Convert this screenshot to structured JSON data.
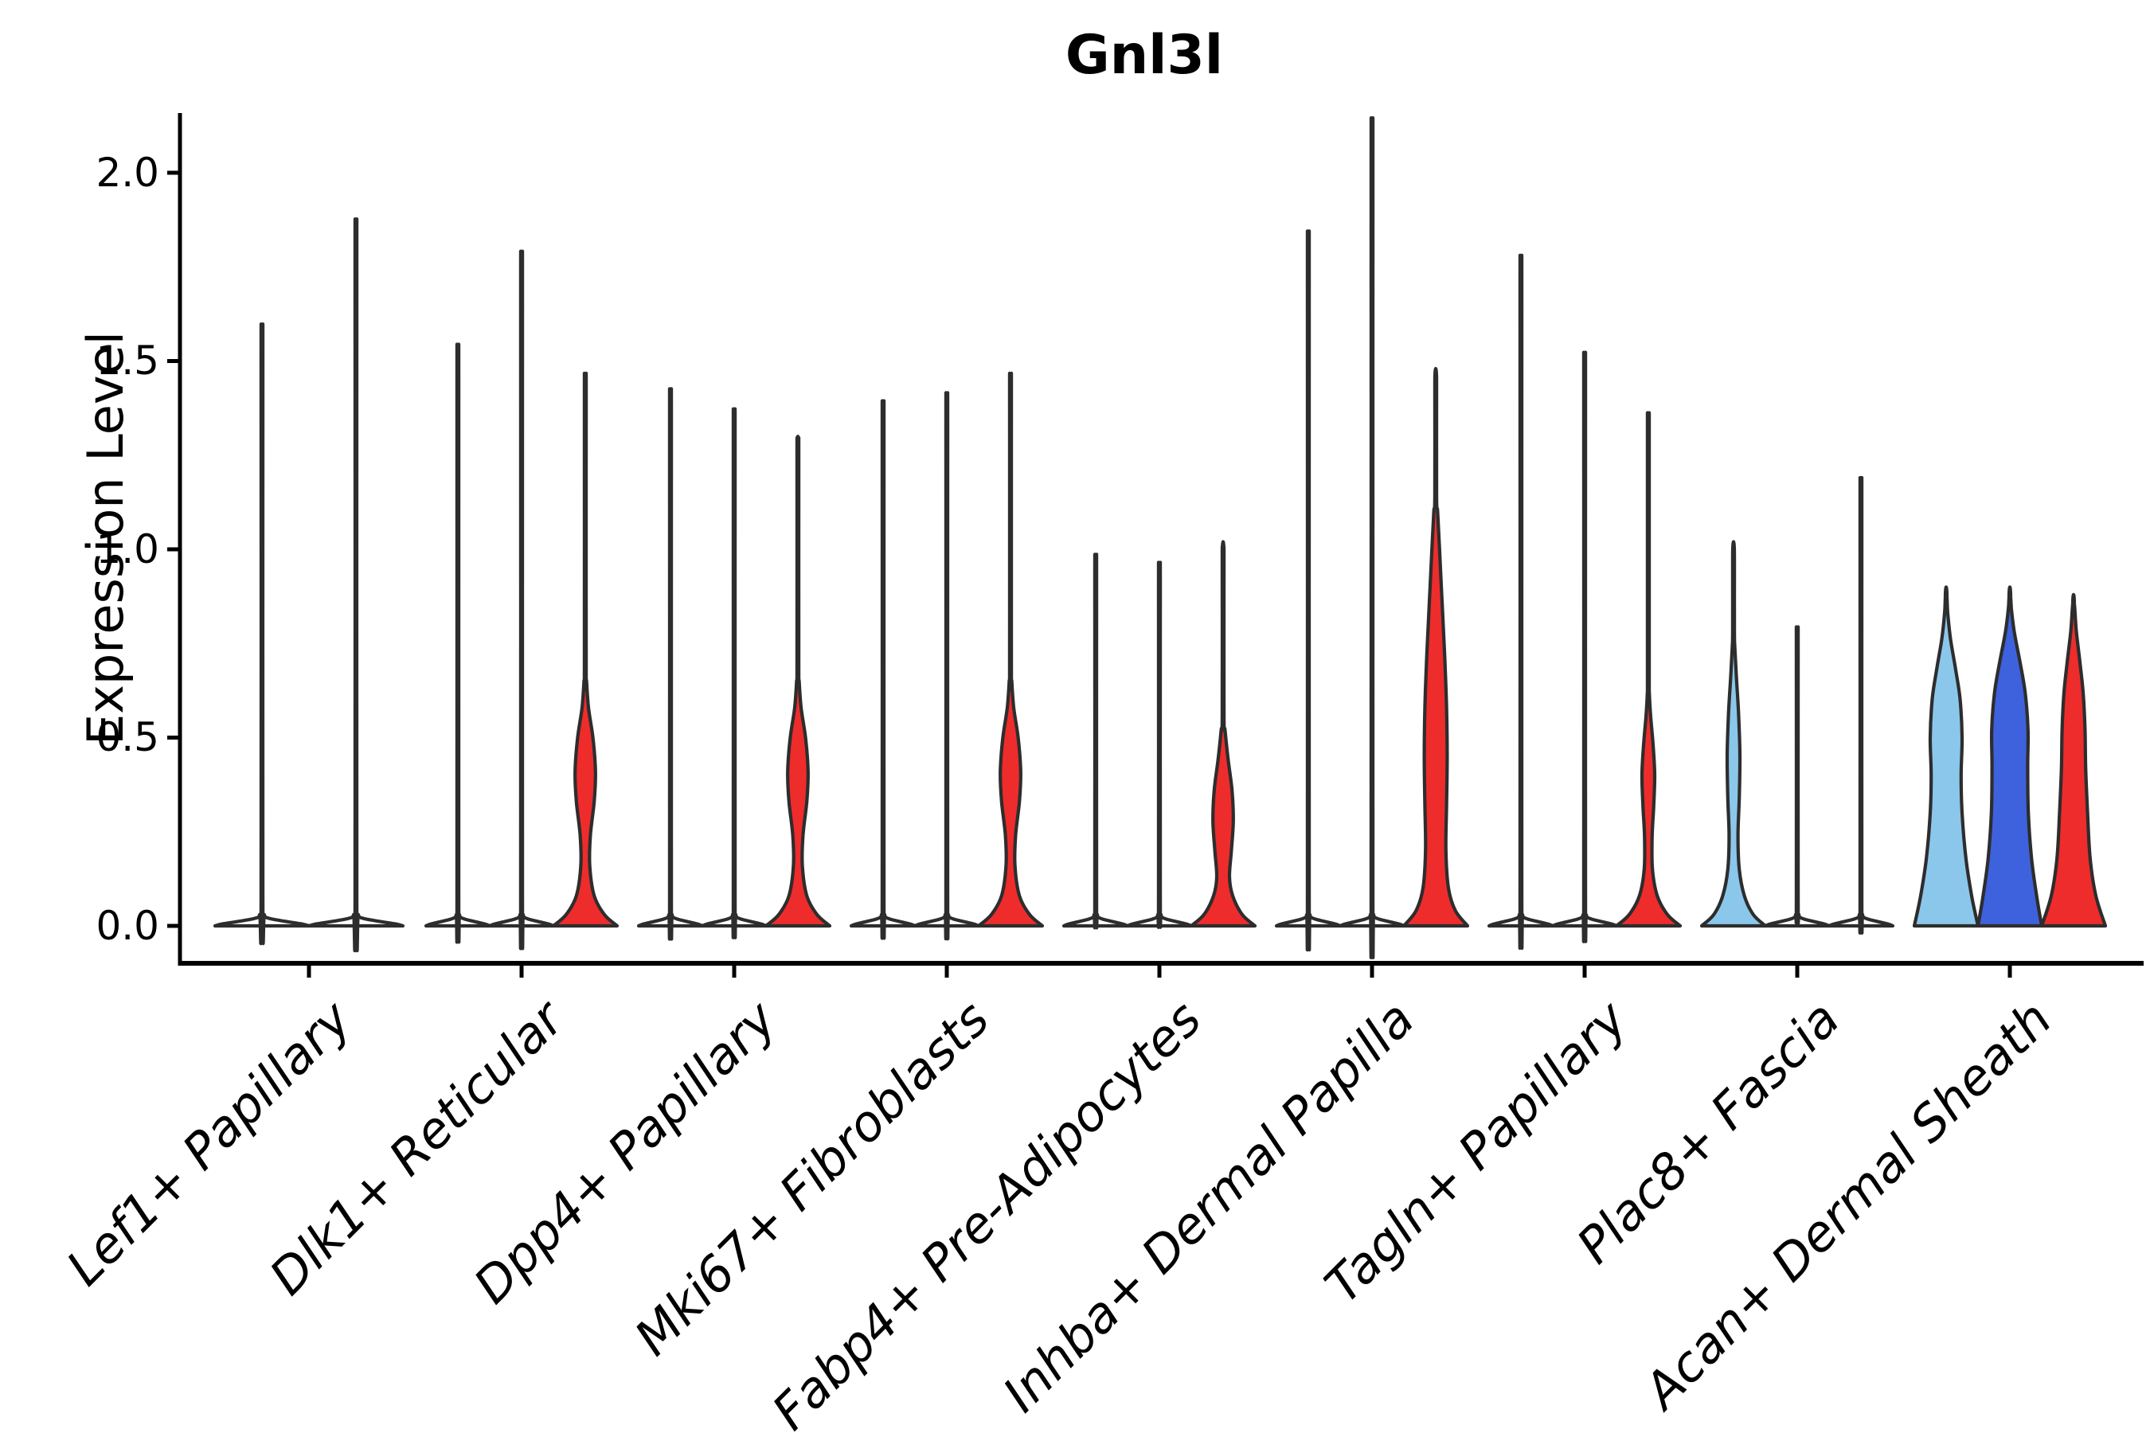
{
  "title": "Gnl3l",
  "axes": {
    "ylabel": "Expression Level",
    "yticks": [
      "0.0",
      "0.5",
      "1.0",
      "1.5",
      "2.0"
    ]
  },
  "colors": {
    "white": "#ffffff",
    "red": "#ee2c2c",
    "lightblue": "#8bc7eb",
    "darkblue": "#3e62dd",
    "outline": "#2d2d2d",
    "axis": "#000000"
  },
  "chart_data": {
    "type": "violin",
    "title": "Gnl3l",
    "ylabel": "Expression Level",
    "ylim": [
      -0.1,
      2.16
    ],
    "ytick_values": [
      0.0,
      0.5,
      1.0,
      1.5,
      2.0
    ],
    "grid": false,
    "legend": null,
    "categories": [
      "Lef1+ Papillary",
      "Dlk1+ Reticular",
      "Dpp4+ Papillary",
      "Mki67+ Fibroblasts",
      "Fabp4+ Pre-Adipocytes",
      "Inhba+ Dermal Papilla",
      "Tagln+ Papillary",
      "Plac8+ Fascia",
      "Acan+ Dermal Sheath"
    ],
    "profiles": {
      "flat": [
        [
          0,
          1
        ],
        [
          0.005,
          0.85
        ],
        [
          0.012,
          0.5
        ],
        [
          0.02,
          0.15
        ],
        [
          0.03,
          0.05
        ]
      ],
      "bulge_small": [
        [
          0,
          1
        ],
        [
          0.03,
          0.6
        ],
        [
          0.08,
          0.28
        ],
        [
          0.15,
          0.13
        ],
        [
          0.24,
          0.12
        ],
        [
          0.32,
          0.17
        ],
        [
          0.4,
          0.2
        ],
        [
          0.48,
          0.15
        ],
        [
          0.56,
          0.07
        ],
        [
          0.62,
          0.03
        ]
      ],
      "bulge_med": [
        [
          0,
          1
        ],
        [
          0.03,
          0.6
        ],
        [
          0.08,
          0.28
        ],
        [
          0.16,
          0.14
        ],
        [
          0.24,
          0.16
        ],
        [
          0.33,
          0.28
        ],
        [
          0.41,
          0.32
        ],
        [
          0.5,
          0.24
        ],
        [
          0.58,
          0.1
        ],
        [
          0.65,
          0.04
        ]
      ],
      "bulge_low": [
        [
          0,
          1
        ],
        [
          0.03,
          0.6
        ],
        [
          0.08,
          0.3
        ],
        [
          0.13,
          0.2
        ],
        [
          0.2,
          0.26
        ],
        [
          0.28,
          0.32
        ],
        [
          0.36,
          0.28
        ],
        [
          0.44,
          0.16
        ],
        [
          0.52,
          0.06
        ]
      ],
      "bulge_tall": [
        [
          0,
          1
        ],
        [
          0.04,
          0.62
        ],
        [
          0.1,
          0.4
        ],
        [
          0.2,
          0.32
        ],
        [
          0.32,
          0.34
        ],
        [
          0.45,
          0.36
        ],
        [
          0.58,
          0.34
        ],
        [
          0.72,
          0.28
        ],
        [
          0.86,
          0.2
        ],
        [
          1.0,
          0.12
        ],
        [
          1.1,
          0.06
        ]
      ],
      "teardrop_slim": [
        [
          0,
          1
        ],
        [
          0.03,
          0.62
        ],
        [
          0.08,
          0.34
        ],
        [
          0.15,
          0.18
        ],
        [
          0.24,
          0.14
        ],
        [
          0.34,
          0.18
        ],
        [
          0.45,
          0.2
        ],
        [
          0.56,
          0.16
        ],
        [
          0.66,
          0.09
        ],
        [
          0.74,
          0.04
        ]
      ],
      "wide_lightblue": [
        [
          0,
          1
        ],
        [
          0.08,
          0.8
        ],
        [
          0.18,
          0.62
        ],
        [
          0.3,
          0.5
        ],
        [
          0.4,
          0.47
        ],
        [
          0.5,
          0.5
        ],
        [
          0.6,
          0.44
        ],
        [
          0.68,
          0.3
        ],
        [
          0.76,
          0.14
        ],
        [
          0.83,
          0.05
        ]
      ],
      "wide_darkblue": [
        [
          0,
          1
        ],
        [
          0.08,
          0.84
        ],
        [
          0.18,
          0.68
        ],
        [
          0.3,
          0.58
        ],
        [
          0.42,
          0.56
        ],
        [
          0.52,
          0.57
        ],
        [
          0.62,
          0.48
        ],
        [
          0.7,
          0.32
        ],
        [
          0.78,
          0.14
        ],
        [
          0.84,
          0.05
        ]
      ],
      "wide_red": [
        [
          0,
          1
        ],
        [
          0.08,
          0.7
        ],
        [
          0.18,
          0.52
        ],
        [
          0.3,
          0.44
        ],
        [
          0.42,
          0.38
        ],
        [
          0.52,
          0.36
        ],
        [
          0.62,
          0.3
        ],
        [
          0.7,
          0.2
        ],
        [
          0.78,
          0.09
        ],
        [
          0.84,
          0.04
        ]
      ]
    },
    "groups": [
      {
        "category": "Lef1+ Papillary",
        "violins": [
          {
            "color": "white",
            "shape": "flat",
            "max": 1.54
          },
          {
            "color": "white",
            "shape": "flat",
            "max": 1.8
          }
        ]
      },
      {
        "category": "Dlk1+ Reticular",
        "violins": [
          {
            "color": "white",
            "shape": "flat",
            "max": 1.49
          },
          {
            "color": "white",
            "shape": "flat",
            "max": 1.72
          },
          {
            "color": "red",
            "shape": "bulge_med",
            "max": 1.46
          }
        ]
      },
      {
        "category": "Dpp4+ Papillary",
        "violins": [
          {
            "color": "white",
            "shape": "flat",
            "max": 1.38
          },
          {
            "color": "white",
            "shape": "flat",
            "max": 1.33
          },
          {
            "color": "red",
            "shape": "bulge_med",
            "max": 1.3
          }
        ]
      },
      {
        "category": "Mki67+ Fibroblasts",
        "violins": [
          {
            "color": "white",
            "shape": "flat",
            "max": 1.35
          },
          {
            "color": "white",
            "shape": "flat",
            "max": 1.37
          },
          {
            "color": "red",
            "shape": "bulge_med",
            "max": 1.46
          }
        ]
      },
      {
        "category": "Fabp4+ Pre-Adipocytes",
        "violins": [
          {
            "color": "white",
            "shape": "flat",
            "max": 0.97
          },
          {
            "color": "white",
            "shape": "flat",
            "max": 0.95
          },
          {
            "color": "red",
            "shape": "bulge_low",
            "max": 1.02
          }
        ]
      },
      {
        "category": "Inhba+ Dermal Papilla",
        "violins": [
          {
            "color": "white",
            "shape": "flat",
            "max": 1.77
          },
          {
            "color": "white",
            "shape": "flat",
            "max": 2.05
          },
          {
            "color": "red",
            "shape": "bulge_tall",
            "max": 1.48
          }
        ]
      },
      {
        "category": "Tagln+ Papillary",
        "violins": [
          {
            "color": "white",
            "shape": "flat",
            "max": 1.71
          },
          {
            "color": "white",
            "shape": "flat",
            "max": 1.47
          },
          {
            "color": "red",
            "shape": "bulge_small",
            "max": 1.36
          }
        ]
      },
      {
        "category": "Plac8+ Fascia",
        "violins": [
          {
            "color": "lightblue",
            "shape": "teardrop_slim",
            "max": 1.02
          },
          {
            "color": "white",
            "shape": "flat",
            "max": 0.79
          },
          {
            "color": "white",
            "shape": "flat",
            "max": 1.16
          }
        ]
      },
      {
        "category": "Acan+ Dermal Sheath",
        "violins": [
          {
            "color": "lightblue",
            "shape": "wide_lightblue",
            "max": 0.9
          },
          {
            "color": "darkblue",
            "shape": "wide_darkblue",
            "max": 0.9
          },
          {
            "color": "red",
            "shape": "wide_red",
            "max": 0.88
          }
        ]
      }
    ]
  }
}
